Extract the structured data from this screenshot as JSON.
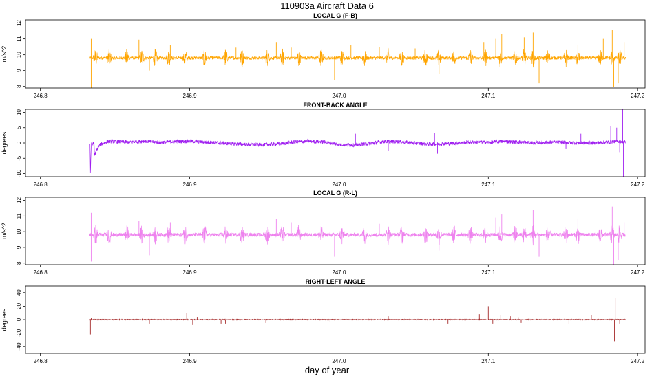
{
  "figure": {
    "title": "110903a   Aircraft Data 6",
    "xlabel": "day of year"
  },
  "chart_data": [
    {
      "type": "line",
      "title": "LOCAL G (F-B)",
      "ylabel": "m/s^2",
      "color": "#FFA500",
      "xlim": [
        246.79,
        247.205
      ],
      "ylim": [
        7.9,
        12.2
      ],
      "xticks": [
        246.8,
        246.9,
        247.0,
        247.1,
        247.2
      ],
      "xtick_labels": [
        "246.8",
        "246.9",
        "247.0",
        "247.1",
        "247.2"
      ],
      "yticks": [
        8,
        9,
        10,
        11,
        12
      ],
      "ytick_labels": [
        "8",
        "9",
        "10",
        "11",
        "12"
      ],
      "series": [
        {
          "x_range": [
            246.833,
            247.192
          ],
          "baseline": 9.8,
          "noise_amplitude": 0.1,
          "bursts": [
            246.837,
            246.846,
            246.858,
            246.868,
            246.877,
            246.886,
            246.897,
            246.91,
            246.924,
            246.935,
            246.952,
            246.962,
            246.973,
            246.988,
            247.002,
            247.017,
            247.033,
            247.042,
            247.058,
            247.067,
            247.077,
            247.088,
            247.098,
            247.108,
            247.118,
            247.124,
            247.13,
            247.14,
            247.152,
            247.16,
            247.175,
            247.183,
            247.188
          ],
          "burst_amplitude": 0.55,
          "spikes": [
            [
              246.834,
              7.9
            ],
            [
              246.834,
              11.0
            ],
            [
              246.866,
              10.95
            ],
            [
              246.873,
              9.0
            ],
            [
              246.887,
              10.6
            ],
            [
              246.931,
              10.45
            ],
            [
              246.935,
              8.5
            ],
            [
              246.958,
              10.8
            ],
            [
              246.968,
              10.45
            ],
            [
              246.997,
              8.4
            ],
            [
              247.008,
              10.6
            ],
            [
              247.027,
              10.5
            ],
            [
              247.051,
              10.4
            ],
            [
              247.067,
              8.8
            ],
            [
              247.097,
              10.8
            ],
            [
              247.105,
              11.0
            ],
            [
              247.109,
              11.3
            ],
            [
              247.124,
              11.1
            ],
            [
              247.13,
              11.4
            ],
            [
              247.134,
              8.2
            ],
            [
              247.16,
              10.6
            ],
            [
              247.177,
              11.0
            ],
            [
              247.183,
              11.55
            ],
            [
              247.184,
              7.95
            ],
            [
              247.187,
              8.2
            ],
            [
              247.191,
              10.8
            ]
          ]
        }
      ]
    },
    {
      "type": "line",
      "title": "FRONT-BACK ANGLE",
      "ylabel": "degrees",
      "color": "#A020F0",
      "xlim": [
        246.79,
        247.205
      ],
      "ylim": [
        -11,
        11
      ],
      "xticks": [
        246.8,
        246.9,
        247.0,
        247.1,
        247.2
      ],
      "xtick_labels": [
        "246.8",
        "246.9",
        "247.0",
        "247.1",
        "247.2"
      ],
      "yticks": [
        -10,
        -5,
        0,
        5,
        10
      ],
      "ytick_labels": [
        "-10",
        "-5",
        "0",
        "5",
        "10"
      ],
      "series": [
        {
          "points": [
            [
              246.8332,
              0.0
            ],
            [
              246.8335,
              -10.5
            ],
            [
              246.834,
              -0.5
            ],
            [
              246.836,
              0.0
            ],
            [
              246.8362,
              -4.0
            ],
            [
              246.838,
              -2.0
            ],
            [
              246.84,
              -0.5
            ],
            [
              246.845,
              0.5
            ],
            [
              246.86,
              0.3
            ],
            [
              246.87,
              0.6
            ],
            [
              246.88,
              0.2
            ],
            [
              246.89,
              0.5
            ],
            [
              246.9,
              0.6
            ],
            [
              246.91,
              0.3
            ],
            [
              246.92,
              0.0
            ],
            [
              246.93,
              -0.3
            ],
            [
              246.94,
              -0.5
            ],
            [
              246.95,
              -0.6
            ],
            [
              246.96,
              -0.3
            ],
            [
              246.97,
              0.3
            ],
            [
              246.98,
              0.6
            ],
            [
              246.99,
              0.3
            ],
            [
              247.0,
              -0.5
            ],
            [
              247.01,
              -0.7
            ],
            [
              247.02,
              -0.2
            ],
            [
              247.03,
              0.5
            ],
            [
              247.04,
              0.4
            ],
            [
              247.05,
              0.0
            ],
            [
              247.06,
              -0.4
            ],
            [
              247.07,
              -0.3
            ],
            [
              247.08,
              0.0
            ],
            [
              247.09,
              0.3
            ],
            [
              247.1,
              0.2
            ],
            [
              247.11,
              0.5
            ],
            [
              247.12,
              0.3
            ],
            [
              247.13,
              0.0
            ],
            [
              247.14,
              0.2
            ],
            [
              247.15,
              0.2
            ],
            [
              247.16,
              0.0
            ],
            [
              247.17,
              0.0
            ],
            [
              247.18,
              0.3
            ],
            [
              247.185,
              0.5
            ],
            [
              247.19,
              0.5
            ],
            [
              247.192,
              0.3
            ]
          ],
          "noise_amplitude": 0.6,
          "spikes": [
            [
              247.011,
              3.0
            ],
            [
              247.033,
              -2.5
            ],
            [
              247.064,
              3.2
            ],
            [
              247.066,
              -3.5
            ],
            [
              247.152,
              -2.0
            ],
            [
              247.162,
              3.0
            ],
            [
              247.182,
              5.5
            ],
            [
              247.186,
              5.0
            ],
            [
              247.19,
              11.0
            ],
            [
              247.1905,
              -11.0
            ],
            [
              247.188,
              -3.0
            ]
          ]
        }
      ]
    },
    {
      "type": "line",
      "title": "LOCAL G (R-L)",
      "ylabel": "m/s^2",
      "color": "#EE82EE",
      "xlim": [
        246.79,
        247.205
      ],
      "ylim": [
        7.9,
        12.2
      ],
      "xticks": [
        246.8,
        246.9,
        247.0,
        247.1,
        247.2
      ],
      "xtick_labels": [
        "246.8",
        "246.9",
        "247.0",
        "247.1",
        "247.2"
      ],
      "yticks": [
        8,
        9,
        10,
        11,
        12
      ],
      "ytick_labels": [
        "8",
        "9",
        "10",
        "11",
        "12"
      ],
      "series": [
        {
          "x_range": [
            246.833,
            247.192
          ],
          "baseline": 9.8,
          "noise_amplitude": 0.12,
          "bursts": [
            246.837,
            246.846,
            246.858,
            246.868,
            246.877,
            246.886,
            246.897,
            246.91,
            246.924,
            246.935,
            246.952,
            246.962,
            246.973,
            246.988,
            247.002,
            247.017,
            247.033,
            247.042,
            247.058,
            247.067,
            247.077,
            247.088,
            247.098,
            247.108,
            247.118,
            247.124,
            247.13,
            247.14,
            247.152,
            247.16,
            247.175,
            247.183,
            247.188
          ],
          "burst_amplitude": 0.6,
          "spikes": [
            [
              246.834,
              8.1
            ],
            [
              246.834,
              11.2
            ],
            [
              246.866,
              10.7
            ],
            [
              246.873,
              8.5
            ],
            [
              246.887,
              10.6
            ],
            [
              246.935,
              8.5
            ],
            [
              246.958,
              10.8
            ],
            [
              246.968,
              10.6
            ],
            [
              246.997,
              8.4
            ],
            [
              247.027,
              10.5
            ],
            [
              247.067,
              8.8
            ],
            [
              247.105,
              10.9
            ],
            [
              247.109,
              11.1
            ],
            [
              247.13,
              11.4
            ],
            [
              247.134,
              8.4
            ],
            [
              247.16,
              10.8
            ],
            [
              247.183,
              11.6
            ],
            [
              247.184,
              7.9
            ],
            [
              247.187,
              8.2
            ],
            [
              247.191,
              10.6
            ]
          ]
        }
      ]
    },
    {
      "type": "line",
      "title": "RIGHT-LEFT ANGLE",
      "ylabel": "degrees",
      "color": "#A52A2A",
      "xlim": [
        246.79,
        247.205
      ],
      "ylim": [
        -50,
        50
      ],
      "xticks": [
        246.8,
        246.9,
        247.0,
        247.1,
        247.2
      ],
      "xtick_labels": [
        "246.8",
        "246.9",
        "247.0",
        "247.1",
        "247.2"
      ],
      "yticks": [
        -40,
        -20,
        0,
        20,
        40
      ],
      "ytick_labels": [
        "-40",
        "-20",
        "0",
        "20",
        "40"
      ],
      "series": [
        {
          "x_range": [
            246.833,
            247.192
          ],
          "baseline": 0,
          "noise_amplitude": 0.6,
          "spikes": [
            [
              246.8335,
              -22.0
            ],
            [
              246.834,
              3.0
            ],
            [
              246.873,
              -6.0
            ],
            [
              246.898,
              10.0
            ],
            [
              246.902,
              -8.0
            ],
            [
              246.905,
              4.0
            ],
            [
              246.921,
              -6.0
            ],
            [
              246.924,
              -6.0
            ],
            [
              246.951,
              -5.0
            ],
            [
              246.994,
              -4.0
            ],
            [
              247.033,
              5.0
            ],
            [
              247.073,
              -6.0
            ],
            [
              247.094,
              8.0
            ],
            [
              247.1,
              20.0
            ],
            [
              247.103,
              -6.0
            ],
            [
              247.108,
              7.0
            ],
            [
              247.115,
              5.0
            ],
            [
              247.12,
              4.0
            ],
            [
              247.122,
              -5.0
            ],
            [
              247.154,
              -6.0
            ],
            [
              247.169,
              7.0
            ],
            [
              247.185,
              32.0
            ],
            [
              247.1845,
              -32.0
            ],
            [
              247.188,
              -6.0
            ],
            [
              247.191,
              3.0
            ]
          ]
        }
      ]
    }
  ]
}
